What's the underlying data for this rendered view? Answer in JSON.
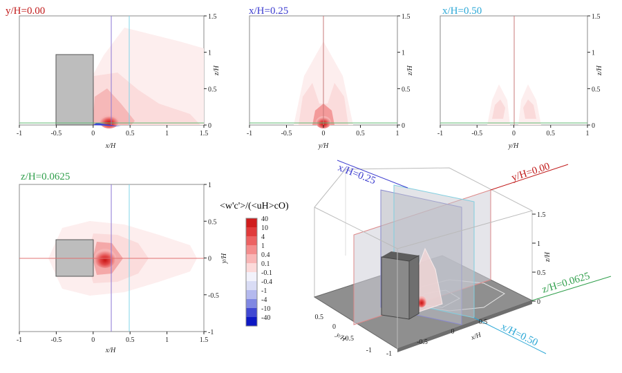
{
  "chart_data": [
    {
      "type": "contour",
      "panel": "xz-plane",
      "title": "y/H=0.00",
      "title_color": "#c01818",
      "xlabel": "x/H",
      "ylabel": "z/H",
      "xlim": [
        -1,
        1.5
      ],
      "ylim": [
        0,
        1.5
      ],
      "xticks": [
        "-1",
        "-0.5",
        "0",
        "0.5",
        "1",
        "1.5"
      ],
      "yticks": [
        "0",
        "0.5",
        "1",
        "1.5"
      ],
      "building": {
        "x": [
          -0.5,
          0
        ],
        "z": [
          0,
          1
        ]
      },
      "reference_lines": [
        {
          "orientation": "vertical",
          "value": 0.25,
          "color": "#6a5acd"
        },
        {
          "orientation": "vertical",
          "value": 0.5,
          "color": "#6ccfe6"
        },
        {
          "orientation": "horizontal",
          "value": 0.0625,
          "color": "#2e9e4a"
        }
      ]
    },
    {
      "type": "contour",
      "panel": "yz-plane",
      "title": "x/H=0.25",
      "title_color": "#3b3bcf",
      "xlabel": "y/H",
      "ylabel": "z/H",
      "xlim": [
        -1,
        1
      ],
      "ylim": [
        0,
        1.5
      ],
      "xticks": [
        "-1",
        "-0.5",
        "0",
        "0.5",
        "1"
      ],
      "yticks": [
        "0",
        "0.5",
        "1",
        "1.5"
      ],
      "reference_lines": [
        {
          "orientation": "vertical",
          "value": 0,
          "color": "#c01818"
        },
        {
          "orientation": "horizontal",
          "value": 0.0625,
          "color": "#2e9e4a"
        }
      ]
    },
    {
      "type": "contour",
      "panel": "yz-plane",
      "title": "x/H=0.50",
      "title_color": "#2aa7d6",
      "xlabel": "y/H",
      "ylabel": "z/H",
      "xlim": [
        -1,
        1
      ],
      "ylim": [
        0,
        1.5
      ],
      "xticks": [
        "-1",
        "-0.5",
        "0",
        "0.5",
        "1"
      ],
      "yticks": [
        "0",
        "0.5",
        "1",
        "1.5"
      ],
      "reference_lines": [
        {
          "orientation": "vertical",
          "value": 0,
          "color": "#c01818"
        },
        {
          "orientation": "horizontal",
          "value": 0.0625,
          "color": "#2e9e4a"
        }
      ]
    },
    {
      "type": "contour",
      "panel": "xy-plane",
      "title": "z/H=0.0625",
      "title_color": "#2e9e4a",
      "xlabel": "x/H",
      "ylabel": "y/H",
      "xlim": [
        -1,
        1.5
      ],
      "ylim": [
        -1,
        1
      ],
      "xticks": [
        "-1",
        "-0.5",
        "0",
        "0.5",
        "1",
        "1.5"
      ],
      "yticks": [
        "-1",
        "-0.5",
        "0",
        "0.5",
        "1"
      ],
      "building": {
        "x": [
          -0.5,
          0
        ],
        "y": [
          -0.25,
          0.25
        ]
      },
      "reference_lines": [
        {
          "orientation": "vertical",
          "value": 0.25,
          "color": "#6a5acd"
        },
        {
          "orientation": "vertical",
          "value": 0.5,
          "color": "#6ccfe6"
        },
        {
          "orientation": "horizontal",
          "value": 0,
          "color": "#c01818"
        }
      ]
    },
    {
      "type": "3d-view",
      "xlabel": "x/H",
      "ylabel": "y/H",
      "zlabel": "z/H",
      "xticks": [
        "-1",
        "-0.5",
        "0",
        "0.5"
      ],
      "yticks": [
        "-1",
        "-0.5",
        "0",
        "0.5"
      ],
      "zticks": [
        "0",
        "0.5",
        "1",
        "1.5"
      ],
      "plane_labels": [
        {
          "text": "x/H=0.25",
          "color": "#3b3bcf"
        },
        {
          "text": "y/H=0.00",
          "color": "#c01818"
        },
        {
          "text": "z/H=0.0625",
          "color": "#2e9e4a"
        },
        {
          "text": "x/H=0.50",
          "color": "#2aa7d6"
        }
      ]
    }
  ],
  "colorbar": {
    "title": "<w'c'>/(<uH>cO)",
    "levels": [
      "40",
      "10",
      "4",
      "1",
      "0.4",
      "0.1",
      "-0.1",
      "-0.4",
      "-1",
      "-4",
      "-10",
      "-40"
    ],
    "colors": [
      "#d01c1c",
      "#e03a3a",
      "#ec6262",
      "#f48d8d",
      "#f9b6b6",
      "#fcdada",
      "#f2f2fb",
      "#d9dcf5",
      "#b4b9ee",
      "#8088e2",
      "#4048d2",
      "#0d18c4"
    ]
  }
}
